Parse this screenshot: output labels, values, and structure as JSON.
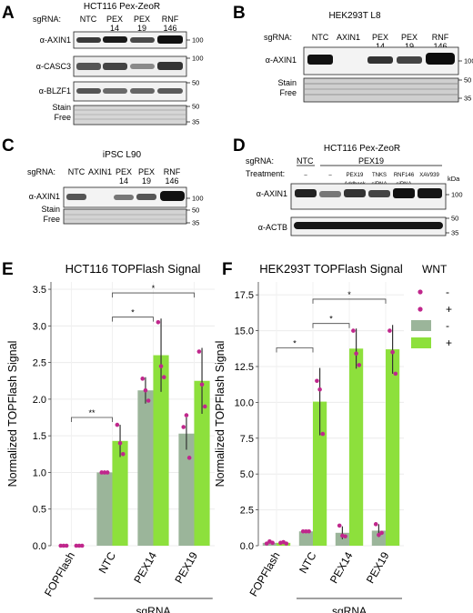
{
  "panels": {
    "A": {
      "letter": "A",
      "title": "HCT116 Pex-ZeoR",
      "sgrna_label": "sgRNA:",
      "lanes": [
        [
          "NTC",
          ""
        ],
        [
          "PEX",
          "14"
        ],
        [
          "PEX",
          "19"
        ],
        [
          "RNF",
          "146"
        ]
      ],
      "rows": [
        {
          "label": "α-AXIN1",
          "markers": [
            "100"
          ]
        },
        {
          "label": "α-CASC3",
          "markers": [
            "100"
          ]
        },
        {
          "label": "α-BLZF1",
          "markers": [
            "50"
          ]
        },
        {
          "label": "Stain Free",
          "markers": [
            "50",
            "35"
          ]
        }
      ]
    },
    "B": {
      "letter": "B",
      "title": "HEK293T L8",
      "sgrna_label": "sgRNA:",
      "lanes": [
        [
          "NTC",
          ""
        ],
        [
          "AXIN1",
          ""
        ],
        [
          "PEX",
          "14"
        ],
        [
          "PEX",
          "19"
        ],
        [
          "RNF",
          "146"
        ]
      ],
      "rows": [
        {
          "label": "α-AXIN1",
          "markers": [
            "100"
          ]
        },
        {
          "label": "Stain Free",
          "markers": [
            "50",
            "35"
          ]
        }
      ]
    },
    "C": {
      "letter": "C",
      "title": "iPSC L90",
      "sgrna_label": "sgRNA:",
      "lanes": [
        [
          "NTC",
          ""
        ],
        [
          "AXIN1",
          ""
        ],
        [
          "PEX",
          "14"
        ],
        [
          "PEX",
          "19"
        ],
        [
          "RNF",
          "146"
        ]
      ],
      "rows": [
        {
          "label": "α-AXIN1",
          "markers": [
            "100"
          ]
        },
        {
          "label": "Stain Free",
          "markers": [
            "50",
            "35"
          ]
        }
      ]
    },
    "D": {
      "letter": "D",
      "title": "HCT116 Pex-ZeoR",
      "sgrna_label": "sgRNA:",
      "ntc": "NTC",
      "pex19": "PEX19",
      "treatment_label": "Treatment:",
      "kda": "kDa",
      "treatments": [
        [
          "–",
          ""
        ],
        [
          "–",
          ""
        ],
        [
          "PEX19",
          "Addback"
        ],
        [
          "TNKS",
          "siRNA"
        ],
        [
          "RNF146",
          "siRNA"
        ],
        [
          "XAV939",
          ""
        ]
      ],
      "rows": [
        {
          "label": "α-AXIN1",
          "markers": [
            "100"
          ]
        },
        {
          "label": "α-ACTB",
          "markers": [
            "50",
            "35"
          ]
        }
      ]
    }
  },
  "kda_label": "kDa",
  "legend": {
    "title": "WNT",
    "entries": [
      "-",
      "+",
      "-",
      "+"
    ],
    "colors": {
      "minus": "#9bb59a",
      "plus": "#8de03c",
      "dot": "#c0278c"
    }
  },
  "chart_data": [
    {
      "panel": "E",
      "type": "bar",
      "title": "HCT116 TOPFlash Signal",
      "ylabel": "Normalized TOPFlash Signal",
      "xlabel": "sgRNA",
      "categories": [
        "FOPFlash",
        "NTC",
        "PEX14",
        "PEX19"
      ],
      "ylim": [
        0,
        3.6
      ],
      "yticks": [
        "0.0",
        "0.5",
        "1.0",
        "1.5",
        "2.0",
        "2.5",
        "3.0",
        "3.5"
      ],
      "series": [
        {
          "name": "-",
          "values": [
            0.0,
            1.0,
            2.12,
            1.53
          ],
          "err": [
            0,
            0,
            0.18,
            0.22
          ],
          "points": [
            [
              0,
              0,
              0
            ],
            [
              1,
              1,
              1
            ],
            [
              2.28,
              2.12,
              1.98
            ],
            [
              1.62,
              1.78,
              1.2
            ]
          ]
        },
        {
          "name": "+",
          "values": [
            0.0,
            1.43,
            2.6,
            2.25
          ],
          "err": [
            0,
            0.22,
            0.5,
            0.45
          ],
          "points": [
            [
              0,
              0,
              0
            ],
            [
              1.65,
              1.4,
              1.25
            ],
            [
              3.05,
              2.45,
              2.3
            ],
            [
              2.65,
              2.2,
              1.9
            ]
          ]
        }
      ],
      "annotations": [
        {
          "text": "**",
          "from": 0,
          "to": 1,
          "y": 1.75
        },
        {
          "text": "*",
          "from": 1,
          "to": 2,
          "y": 3.12
        },
        {
          "text": "*",
          "from": 1,
          "to": 3,
          "y": 3.45
        }
      ]
    },
    {
      "panel": "F",
      "type": "bar",
      "title": "HEK293T TOPFlash Signal",
      "ylabel": "Normalized TOPFlash Signal",
      "xlabel": "sgRNA",
      "categories": [
        "FOPFlash",
        "NTC",
        "PEX14",
        "PEX19"
      ],
      "ylim": [
        0,
        18.4
      ],
      "yticks": [
        "0.0",
        "2.5",
        "5.0",
        "7.5",
        "10.0",
        "12.5",
        "15.0",
        "17.5"
      ],
      "series": [
        {
          "name": "-",
          "values": [
            0.2,
            1.0,
            0.9,
            1.05
          ],
          "err": [
            0.05,
            0,
            0.45,
            0.45
          ],
          "points": [
            [
              0.15,
              0.3,
              0.2
            ],
            [
              1,
              1,
              1
            ],
            [
              1.4,
              0.7,
              0.65
            ],
            [
              1.5,
              0.75,
              0.9
            ]
          ]
        },
        {
          "name": "+",
          "values": [
            0.2,
            10.05,
            13.75,
            13.7
          ],
          "err": [
            0.05,
            2.35,
            1.4,
            1.7
          ],
          "points": [
            [
              0.2,
              0.25,
              0.15
            ],
            [
              11.5,
              10.9,
              7.8
            ],
            [
              15.0,
              13.4,
              12.6
            ],
            [
              15.0,
              13.5,
              12.0
            ]
          ]
        }
      ],
      "annotations": [
        {
          "text": "*",
          "from": 0,
          "to": 1,
          "y": 13.8
        },
        {
          "text": "*",
          "from": 1,
          "to": 2,
          "y": 15.5
        },
        {
          "text": "*",
          "from": 1,
          "to": 3,
          "y": 17.2
        }
      ]
    }
  ]
}
